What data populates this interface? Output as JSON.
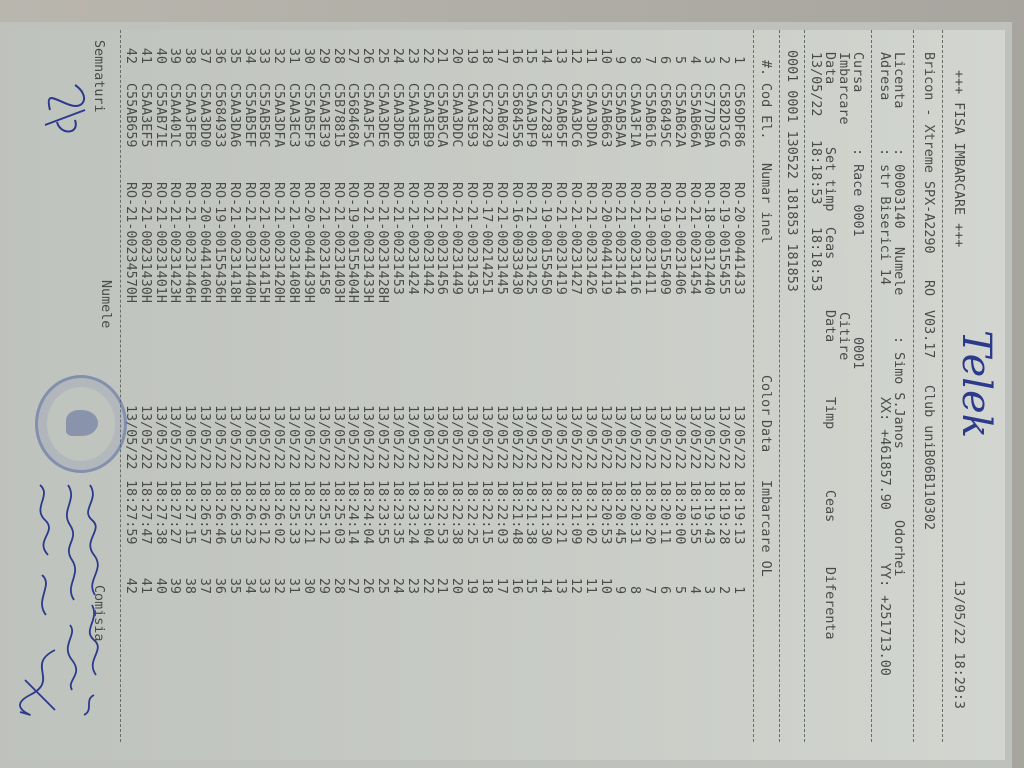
{
  "header": {
    "title": "+++ FISA IMBARCARE +++",
    "printed_datetime": "13/05/22 18:29:3",
    "device": "Bricon - Xtreme SPX-A2290",
    "country": "RO",
    "version": "V03.17",
    "club": "Club uniB06B110302",
    "licenta_label": "Licenta",
    "licenta_value": ": 00003140",
    "numele_label": "Numele",
    "numele_value": ": Simo S.Janos",
    "locality": "Odorhei",
    "adresa_label": "Adresa",
    "adresa_value": ": str Biserici 14",
    "xx": "XX: +461857.90",
    "yy": "YY: +251713.00",
    "cursa_label": "Cursa",
    "cursa_value": ": Race 0001",
    "cursa_code": "0001",
    "imbarcare_label": "Imbarcare",
    "citire_label": "Citire",
    "data_label": "Data",
    "set_timp_label": "Set timp",
    "ceas_label": "Ceas",
    "data2_label": "Data",
    "timp_label": "Timp",
    "ceas2_label": "Ceas",
    "diferenta_label": "Diferenta",
    "data_value": "13/05/22",
    "set_timp_value": "18:18:53",
    "ceas_value": "18:18:53",
    "codes_line": "0001 0001 130522 181853 181853"
  },
  "handwritten_note": "Telek",
  "table": {
    "columns": [
      "#.",
      "Cod El.",
      "Numar inel",
      "Color",
      "Data",
      "Imbarcare OL"
    ],
    "rows": [
      [
        "1",
        "C569DF86",
        "RO-20-00441433",
        "13/05/22",
        "18:19:13",
        "1"
      ],
      [
        "2",
        "C582D3C6",
        "RO-19-00155455",
        "13/05/22",
        "18:19:28",
        "2"
      ],
      [
        "3",
        "C577D3BA",
        "RO-18-00312440",
        "13/05/22",
        "18:19:43",
        "3"
      ],
      [
        "4",
        "C55AB66A",
        "RO-21-00231454",
        "13/05/22",
        "18:19:55",
        "4"
      ],
      [
        "5",
        "C55AB62A",
        "RO-21-00231406",
        "13/05/22",
        "18:20:00",
        "5"
      ],
      [
        "6",
        "C568495C",
        "RO-19-00155409",
        "13/05/22",
        "18:20:11",
        "6"
      ],
      [
        "7",
        "C55AB616",
        "RO-21-00231411",
        "13/05/22",
        "18:20:20",
        "7"
      ],
      [
        "8",
        "C5AA3F1A",
        "RO-21-00231416",
        "13/05/22",
        "18:20:31",
        "8"
      ],
      [
        "9",
        "C55AB5AA",
        "RO-21-00231414",
        "13/05/22",
        "18:20:45",
        "9"
      ],
      [
        "10",
        "C55AB663",
        "RO-20-00441419",
        "13/05/22",
        "18:20:53",
        "10"
      ],
      [
        "11",
        "C5AA3DDA",
        "RO-21-00231426",
        "13/05/22",
        "18:21:02",
        "11"
      ],
      [
        "12",
        "C5AA3DC6",
        "RO-21-00231427",
        "13/05/22",
        "18:21:09",
        "12"
      ],
      [
        "13",
        "C55AB65F",
        "RO-21-00231419",
        "13/05/22",
        "18:21:21",
        "13"
      ],
      [
        "14",
        "C5C2283F",
        "RO-19-00155450",
        "13/05/22",
        "18:21:30",
        "14"
      ],
      [
        "15",
        "C5AA3DF9",
        "RO-21-00231425",
        "13/05/22",
        "18:21:38",
        "15"
      ],
      [
        "16",
        "C5684556",
        "RO-16-00333430",
        "13/05/22",
        "18:21:48",
        "16"
      ],
      [
        "17",
        "C55AB673",
        "RO-21-00231445",
        "13/05/22",
        "18:22:03",
        "17"
      ],
      [
        "18",
        "C5C22829",
        "RO-17-00214251",
        "13/05/22",
        "18:22:15",
        "18"
      ],
      [
        "19",
        "C5AA3E93",
        "RO-21-00231435",
        "13/05/22",
        "18:22:25",
        "19"
      ],
      [
        "20",
        "C5AA3DDC",
        "RO-21-00231449",
        "13/05/22",
        "18:22:38",
        "20"
      ],
      [
        "21",
        "C55AB5CA",
        "RO-21-00231456",
        "13/05/22",
        "18:22:53",
        "21"
      ],
      [
        "22",
        "C5AA3EB9",
        "RO-21-00231442",
        "13/05/22",
        "18:23:04",
        "22"
      ],
      [
        "23",
        "C5AA3EB5",
        "RO-21-00231424",
        "13/05/22",
        "18:23:24",
        "23"
      ],
      [
        "24",
        "C5AA3DD6",
        "RO-21-00231453",
        "13/05/22",
        "18:23:35",
        "24"
      ],
      [
        "25",
        "C5AA3DE6",
        "RO-21-00231428H",
        "13/05/22",
        "18:23:55",
        "25"
      ],
      [
        "26",
        "C5AA3F5C",
        "RO-21-00231433H",
        "13/05/22",
        "18:24:04",
        "26"
      ],
      [
        "27",
        "C568468A",
        "RO-19-00155404H",
        "13/05/22",
        "18:24:14",
        "27"
      ],
      [
        "28",
        "C5B78815",
        "RO-21-00231403H",
        "13/05/22",
        "18:25:03",
        "28"
      ],
      [
        "29",
        "C5AA3E39",
        "RO-21-00231458",
        "13/05/22",
        "18:25:12",
        "29"
      ],
      [
        "30",
        "C55AB5F9",
        "RO-20-00441439H",
        "13/05/22",
        "18:25:21",
        "30"
      ],
      [
        "31",
        "C5AA3EC3",
        "RO-21-00231408H",
        "13/05/22",
        "18:25:33",
        "31"
      ],
      [
        "32",
        "C5AA3DFA",
        "RO-21-00231420H",
        "13/05/22",
        "18:26:02",
        "32"
      ],
      [
        "33",
        "C55AB5BC",
        "RO-21-00231415H",
        "13/05/22",
        "18:26:12",
        "33"
      ],
      [
        "34",
        "C55AB5EF",
        "RO-21-00231440H",
        "13/05/22",
        "18:26:23",
        "34"
      ],
      [
        "35",
        "C5AA3DA6",
        "RO-21-00231418H",
        "13/05/22",
        "18:26:35",
        "35"
      ],
      [
        "36",
        "C5684933",
        "RO-19-00155436H",
        "13/05/22",
        "18:26:46",
        "36"
      ],
      [
        "37",
        "C5AA3DD0",
        "RO-20-00441406H",
        "13/05/22",
        "18:26:57",
        "37"
      ],
      [
        "38",
        "C5AA3FB5",
        "RO-21-00231446H",
        "13/05/22",
        "18:27:15",
        "38"
      ],
      [
        "39",
        "C5AA401C",
        "RO-21-00231423H",
        "13/05/22",
        "18:27:27",
        "39"
      ],
      [
        "40",
        "C55AB71E",
        "RO-21-00231401H",
        "13/05/22",
        "18:27:38",
        "40"
      ],
      [
        "41",
        "C5AA3EF5",
        "RO-21-00231430H",
        "13/05/22",
        "18:27:47",
        "41"
      ],
      [
        "42",
        "C55AB659",
        "RO-21-00234570H",
        "13/05/22",
        "18:27:59",
        "42"
      ]
    ]
  },
  "footer": {
    "semnaturi_label": "Semnaturi",
    "numele_label": "Numele",
    "comisia_label": "Comisia"
  },
  "colors": {
    "ink": "#4a4c4b",
    "pen": "#2c3a8c",
    "stamp": "#5064a0"
  }
}
